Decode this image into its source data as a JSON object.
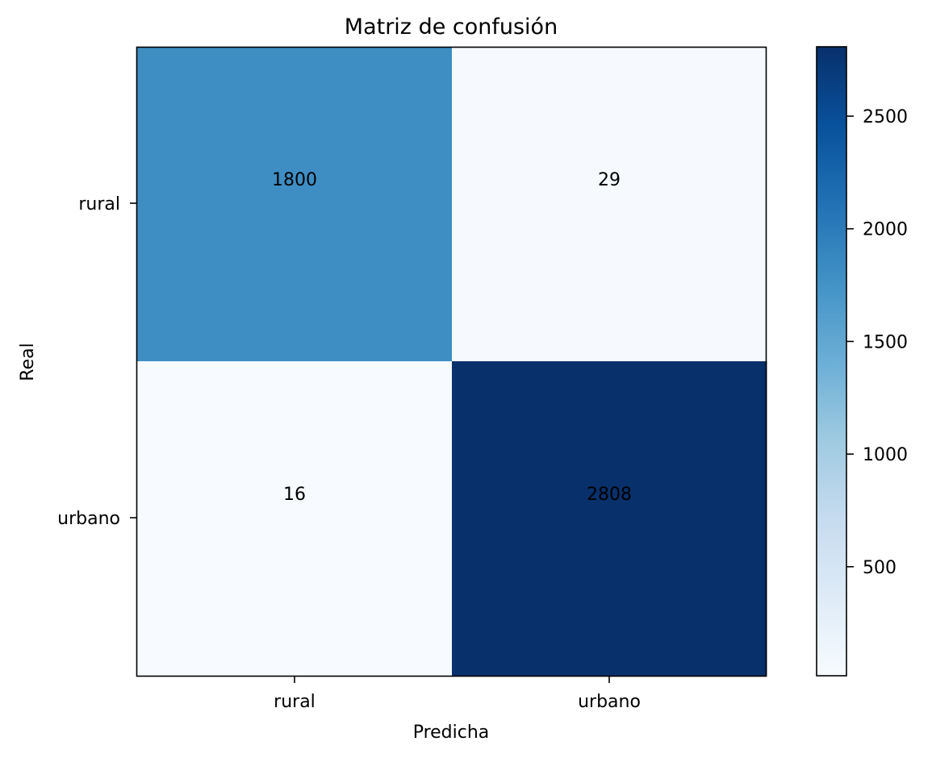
{
  "chart_data": {
    "type": "heatmap",
    "title": "Matriz de confusión",
    "xlabel": "Predicha",
    "ylabel": "Real",
    "x_categories": [
      "rural",
      "urbano"
    ],
    "y_categories": [
      "rural",
      "urbano"
    ],
    "values": [
      [
        1800,
        29
      ],
      [
        16,
        2808
      ]
    ],
    "colormap": "Blues",
    "colorbar": {
      "min": 16,
      "max": 2808,
      "ticks": [
        500,
        1000,
        1500,
        2000,
        2500
      ]
    },
    "colors": {
      "low": "#f7fbff",
      "high": "#08306b"
    }
  }
}
